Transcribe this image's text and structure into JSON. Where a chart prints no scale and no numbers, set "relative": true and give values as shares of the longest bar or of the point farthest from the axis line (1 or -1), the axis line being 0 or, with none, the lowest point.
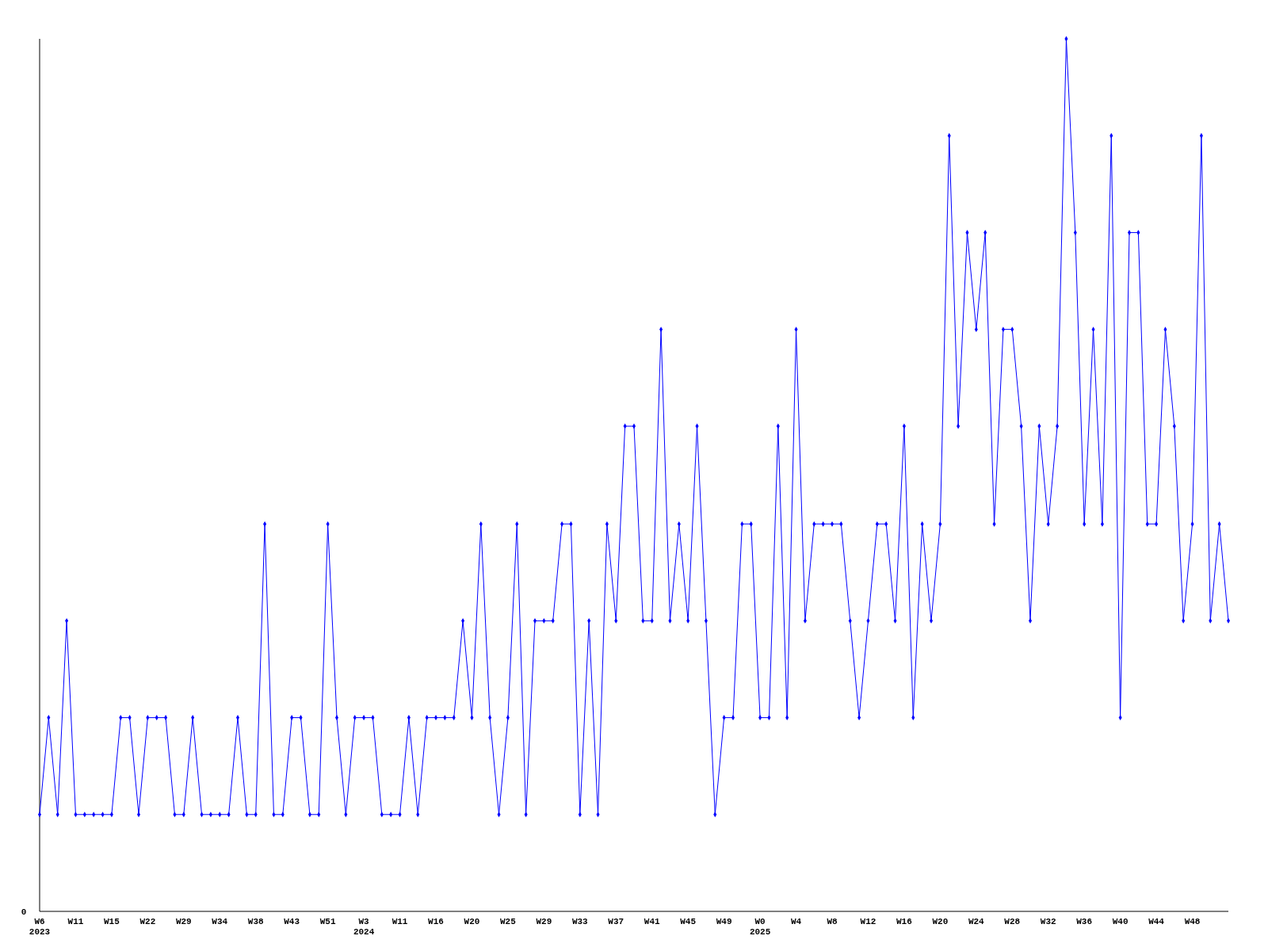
{
  "chart_data": {
    "type": "line",
    "relative": true,
    "color": "#0000ff",
    "marker": "diamond",
    "annotations": [
      "0"
    ],
    "categories": [
      "W6\n2023",
      null,
      null,
      null,
      "W11",
      null,
      null,
      null,
      "W15",
      null,
      null,
      null,
      "W22",
      null,
      null,
      null,
      "W29",
      null,
      null,
      null,
      "W34",
      null,
      null,
      null,
      "W38",
      null,
      null,
      null,
      "W43",
      null,
      null,
      null,
      "W51",
      null,
      null,
      null,
      "W3\n2024",
      null,
      null,
      null,
      "W11",
      null,
      null,
      null,
      "W16",
      null,
      null,
      null,
      "W20",
      null,
      null,
      null,
      "W25",
      null,
      null,
      null,
      "W29",
      null,
      null,
      null,
      "W33",
      null,
      null,
      null,
      "W37",
      null,
      null,
      null,
      "W41",
      null,
      null,
      null,
      "W45",
      null,
      null,
      null,
      "W49",
      null,
      null,
      null,
      "W0\n2025",
      null,
      null,
      null,
      "W4",
      null,
      null,
      null,
      "W8",
      null,
      null,
      null,
      "W12",
      null,
      null,
      null,
      "W16",
      null,
      null,
      null,
      "W20",
      null,
      null,
      null,
      "W24",
      null,
      null,
      null,
      "W28",
      null,
      null,
      null,
      "W32",
      null,
      null,
      null,
      "W36",
      null,
      null,
      null,
      "W40",
      null,
      null,
      null,
      "W44",
      null,
      null,
      null,
      "W48",
      null,
      null,
      null,
      null
    ],
    "values": [
      0.111,
      0.222,
      0.111,
      0.333,
      0.111,
      0.111,
      0.111,
      0.111,
      0.111,
      0.222,
      0.222,
      0.111,
      0.222,
      0.222,
      0.222,
      0.111,
      0.111,
      0.222,
      0.111,
      0.111,
      0.111,
      0.111,
      0.222,
      0.111,
      0.111,
      0.444,
      0.111,
      0.111,
      0.222,
      0.222,
      0.111,
      0.111,
      0.444,
      0.222,
      0.111,
      0.222,
      0.222,
      0.222,
      0.111,
      0.111,
      0.111,
      0.222,
      0.111,
      0.222,
      0.222,
      0.222,
      0.222,
      0.333,
      0.222,
      0.444,
      0.222,
      0.111,
      0.222,
      0.444,
      0.111,
      0.333,
      0.333,
      0.333,
      0.444,
      0.444,
      0.111,
      0.333,
      0.111,
      0.444,
      0.333,
      0.556,
      0.556,
      0.333,
      0.333,
      0.667,
      0.333,
      0.444,
      0.333,
      0.556,
      0.333,
      0.111,
      0.222,
      0.222,
      0.444,
      0.444,
      0.222,
      0.222,
      0.556,
      0.222,
      0.667,
      0.333,
      0.444,
      0.444,
      0.444,
      0.444,
      0.333,
      0.222,
      0.333,
      0.444,
      0.444,
      0.333,
      0.556,
      0.222,
      0.444,
      0.333,
      0.444,
      0.889,
      0.556,
      0.778,
      0.667,
      0.778,
      0.444,
      0.667,
      0.667,
      0.556,
      0.333,
      0.556,
      0.444,
      0.556,
      1,
      0.778,
      0.444,
      0.667,
      0.444,
      0.889,
      0.222,
      0.778,
      0.778,
      0.444,
      0.444,
      0.667,
      0.556,
      0.333,
      0.444,
      0.889,
      0.333,
      0.444,
      0.333
    ]
  }
}
